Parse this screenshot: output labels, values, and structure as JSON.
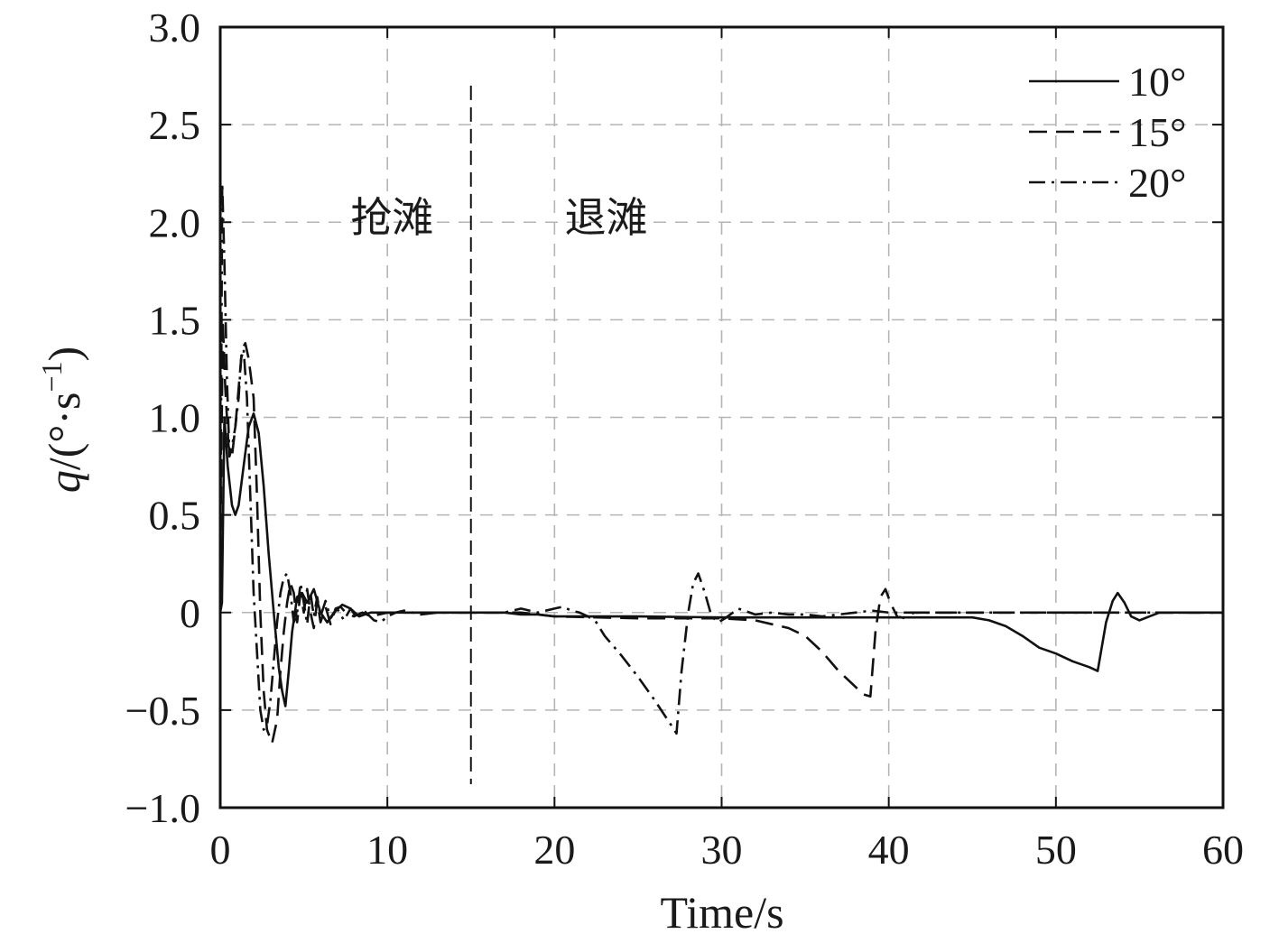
{
  "chart_data": {
    "type": "line",
    "xlabel": "Time/s",
    "ylabel_main": "q",
    "ylabel_unit_open": "/(°·s",
    "ylabel_unit_exp": "−1",
    "ylabel_unit_close": ")",
    "xlim": [
      0,
      60
    ],
    "ylim": [
      -1.0,
      3.0
    ],
    "xticks": [
      0,
      10,
      20,
      30,
      40,
      50,
      60
    ],
    "xtick_labels": [
      "0",
      "10",
      "20",
      "30",
      "40",
      "50",
      "60"
    ],
    "yticks": [
      -1.0,
      -0.5,
      0,
      0.5,
      1.0,
      1.5,
      2.0,
      2.5,
      3.0
    ],
    "ytick_labels": [
      "−1.0",
      "−0.5",
      "0",
      "0.5",
      "1.0",
      "1.5",
      "2.0",
      "2.5",
      "3.0"
    ],
    "grid": true,
    "legend_position": "top-right",
    "annotations": {
      "phase_divider_x": 15,
      "phase_divider_y_range": [
        -0.88,
        2.7
      ],
      "left_phase_label": "抢滩",
      "left_phase_pos": [
        7.8,
        1.95
      ],
      "right_phase_label": "退滩",
      "right_phase_pos": [
        20.6,
        1.95
      ]
    },
    "series": [
      {
        "name": "10°",
        "dash": "solid",
        "points": [
          [
            0,
            0
          ],
          [
            0.1,
            0.05
          ],
          [
            0.25,
            1.0
          ],
          [
            0.45,
            0.75
          ],
          [
            0.7,
            0.55
          ],
          [
            0.9,
            0.5
          ],
          [
            1.1,
            0.55
          ],
          [
            1.4,
            0.75
          ],
          [
            1.7,
            0.95
          ],
          [
            2.0,
            1.02
          ],
          [
            2.3,
            0.92
          ],
          [
            2.6,
            0.65
          ],
          [
            2.9,
            0.3
          ],
          [
            3.2,
            0.0
          ],
          [
            3.5,
            -0.28
          ],
          [
            3.7,
            -0.4
          ],
          [
            3.9,
            -0.48
          ],
          [
            4.1,
            -0.3
          ],
          [
            4.3,
            -0.1
          ],
          [
            4.6,
            0.08
          ],
          [
            4.9,
            0.1
          ],
          [
            5.2,
            0.05
          ],
          [
            5.6,
            0.12
          ],
          [
            6.0,
            0.0
          ],
          [
            6.4,
            -0.05
          ],
          [
            6.8,
            0.0
          ],
          [
            7.3,
            0.04
          ],
          [
            7.8,
            0.02
          ],
          [
            8.3,
            -0.02
          ],
          [
            9.0,
            0.0
          ],
          [
            10,
            0.0
          ],
          [
            12,
            0.0
          ],
          [
            15,
            0.0
          ],
          [
            17,
            0.0
          ],
          [
            18,
            -0.01
          ],
          [
            19,
            -0.01
          ],
          [
            20,
            -0.02
          ],
          [
            25,
            -0.02
          ],
          [
            30,
            -0.025
          ],
          [
            40,
            -0.025
          ],
          [
            45,
            -0.025
          ],
          [
            46,
            -0.04
          ],
          [
            47,
            -0.07
          ],
          [
            48,
            -0.12
          ],
          [
            49,
            -0.18
          ],
          [
            50,
            -0.21
          ],
          [
            51,
            -0.25
          ],
          [
            52,
            -0.28
          ],
          [
            52.5,
            -0.3
          ],
          [
            53,
            -0.05
          ],
          [
            53.4,
            0.06
          ],
          [
            53.7,
            0.1
          ],
          [
            54.1,
            0.05
          ],
          [
            54.5,
            -0.02
          ],
          [
            55,
            -0.04
          ],
          [
            55.6,
            -0.02
          ],
          [
            56.2,
            0.0
          ],
          [
            57,
            0.0
          ],
          [
            60,
            0.0
          ]
        ]
      },
      {
        "name": "15°",
        "dash": "dashed",
        "points": [
          [
            0,
            0
          ],
          [
            0.05,
            0.6
          ],
          [
            0.15,
            1.5
          ],
          [
            0.3,
            1.15
          ],
          [
            0.5,
            0.85
          ],
          [
            0.7,
            0.8
          ],
          [
            0.9,
            0.95
          ],
          [
            1.1,
            1.15
          ],
          [
            1.3,
            1.35
          ],
          [
            1.5,
            1.38
          ],
          [
            1.7,
            1.3
          ],
          [
            2.0,
            1.1
          ],
          [
            2.2,
            0.6
          ],
          [
            2.4,
            0.0
          ],
          [
            2.6,
            -0.4
          ],
          [
            2.8,
            -0.6
          ],
          [
            3.1,
            -0.67
          ],
          [
            3.4,
            -0.55
          ],
          [
            3.6,
            -0.3
          ],
          [
            3.8,
            -0.1
          ],
          [
            4.0,
            0.05
          ],
          [
            4.2,
            0.15
          ],
          [
            4.4,
            0.1
          ],
          [
            4.6,
            -0.05
          ],
          [
            4.8,
            0.1
          ],
          [
            5.0,
            0.0
          ],
          [
            5.2,
            0.12
          ],
          [
            5.4,
            0.0
          ],
          [
            5.6,
            -0.08
          ],
          [
            5.8,
            0.06
          ],
          [
            6.0,
            -0.05
          ],
          [
            6.3,
            0.03
          ],
          [
            6.6,
            -0.06
          ],
          [
            6.9,
            0.02
          ],
          [
            7.2,
            0.03
          ],
          [
            7.5,
            0.0
          ],
          [
            8.0,
            -0.02
          ],
          [
            8.5,
            0.0
          ],
          [
            9,
            -0.02
          ],
          [
            10,
            0.0
          ],
          [
            12,
            0.0
          ],
          [
            15,
            0.0
          ],
          [
            17,
            0.0
          ],
          [
            18,
            0.0
          ],
          [
            19,
            -0.01
          ],
          [
            20,
            -0.02
          ],
          [
            25,
            -0.03
          ],
          [
            30,
            -0.03
          ],
          [
            32,
            -0.04
          ],
          [
            33,
            -0.06
          ],
          [
            34,
            -0.08
          ],
          [
            35,
            -0.12
          ],
          [
            36,
            -0.2
          ],
          [
            37,
            -0.3
          ],
          [
            38,
            -0.38
          ],
          [
            38.5,
            -0.42
          ],
          [
            38.9,
            -0.43
          ],
          [
            39.2,
            -0.1
          ],
          [
            39.5,
            0.08
          ],
          [
            39.8,
            0.12
          ],
          [
            40.1,
            0.05
          ],
          [
            40.5,
            -0.02
          ],
          [
            41,
            -0.03
          ],
          [
            41.5,
            0.0
          ],
          [
            42,
            0.0
          ],
          [
            50,
            0.0
          ],
          [
            60,
            0.0
          ]
        ]
      },
      {
        "name": "20°",
        "dash": "dashdot",
        "points": [
          [
            0,
            0
          ],
          [
            0.05,
            1.0
          ],
          [
            0.12,
            2.2
          ],
          [
            0.25,
            1.8
          ],
          [
            0.4,
            1.2
          ],
          [
            0.55,
            0.8
          ],
          [
            0.7,
            0.85
          ],
          [
            0.9,
            0.95
          ],
          [
            1.1,
            1.1
          ],
          [
            1.25,
            1.3
          ],
          [
            1.4,
            1.35
          ],
          [
            1.6,
            1.1
          ],
          [
            1.8,
            0.6
          ],
          [
            2.0,
            0.1
          ],
          [
            2.2,
            -0.2
          ],
          [
            2.4,
            -0.5
          ],
          [
            2.6,
            -0.6
          ],
          [
            2.8,
            -0.58
          ],
          [
            3.0,
            -0.45
          ],
          [
            3.2,
            -0.25
          ],
          [
            3.4,
            -0.05
          ],
          [
            3.6,
            0.1
          ],
          [
            3.8,
            0.18
          ],
          [
            4.0,
            0.2
          ],
          [
            4.2,
            0.1
          ],
          [
            4.4,
            -0.05
          ],
          [
            4.6,
            0.0
          ],
          [
            4.8,
            0.15
          ],
          [
            5.0,
            0.05
          ],
          [
            5.2,
            -0.06
          ],
          [
            5.4,
            0.1
          ],
          [
            5.6,
            -0.02
          ],
          [
            5.8,
            0.08
          ],
          [
            6.0,
            -0.02
          ],
          [
            6.3,
            0.06
          ],
          [
            6.6,
            -0.03
          ],
          [
            7.0,
            0.02
          ],
          [
            7.4,
            -0.04
          ],
          [
            7.8,
            0.02
          ],
          [
            8.2,
            -0.03
          ],
          [
            8.6,
            0.01
          ],
          [
            9.2,
            -0.04
          ],
          [
            9.6,
            -0.05
          ],
          [
            10,
            -0.02
          ],
          [
            10.5,
            0.0
          ],
          [
            11,
            0.01
          ],
          [
            12,
            -0.01
          ],
          [
            13,
            0.0
          ],
          [
            15,
            0.0
          ],
          [
            16,
            0.0
          ],
          [
            17,
            0.0
          ],
          [
            18,
            0.02
          ],
          [
            19,
            0.0
          ],
          [
            20,
            0.02
          ],
          [
            20.5,
            0.03
          ],
          [
            21,
            0.01
          ],
          [
            21.5,
            0.0
          ],
          [
            22,
            -0.02
          ],
          [
            22.5,
            -0.05
          ],
          [
            23,
            -0.12
          ],
          [
            24,
            -0.22
          ],
          [
            25,
            -0.33
          ],
          [
            26,
            -0.45
          ],
          [
            27,
            -0.58
          ],
          [
            27.3,
            -0.62
          ],
          [
            27.6,
            -0.3
          ],
          [
            28,
            0.0
          ],
          [
            28.3,
            0.15
          ],
          [
            28.6,
            0.2
          ],
          [
            29,
            0.1
          ],
          [
            29.4,
            -0.02
          ],
          [
            29.8,
            -0.05
          ],
          [
            30.2,
            -0.03
          ],
          [
            31,
            0.02
          ],
          [
            32,
            -0.01
          ],
          [
            33,
            0.0
          ],
          [
            34,
            -0.01
          ],
          [
            35,
            -0.01
          ],
          [
            36,
            -0.02
          ],
          [
            37,
            -0.01
          ],
          [
            38,
            0.0
          ],
          [
            39,
            0.01
          ],
          [
            40,
            0.0
          ],
          [
            41,
            0.0
          ],
          [
            42,
            0.0
          ],
          [
            45,
            0.0
          ],
          [
            50,
            0.0
          ],
          [
            55,
            0.0
          ],
          [
            60,
            0.0
          ]
        ]
      }
    ]
  },
  "colors": {
    "line": "#111111",
    "grid": "#b5b5b5",
    "background": "#ffffff"
  }
}
